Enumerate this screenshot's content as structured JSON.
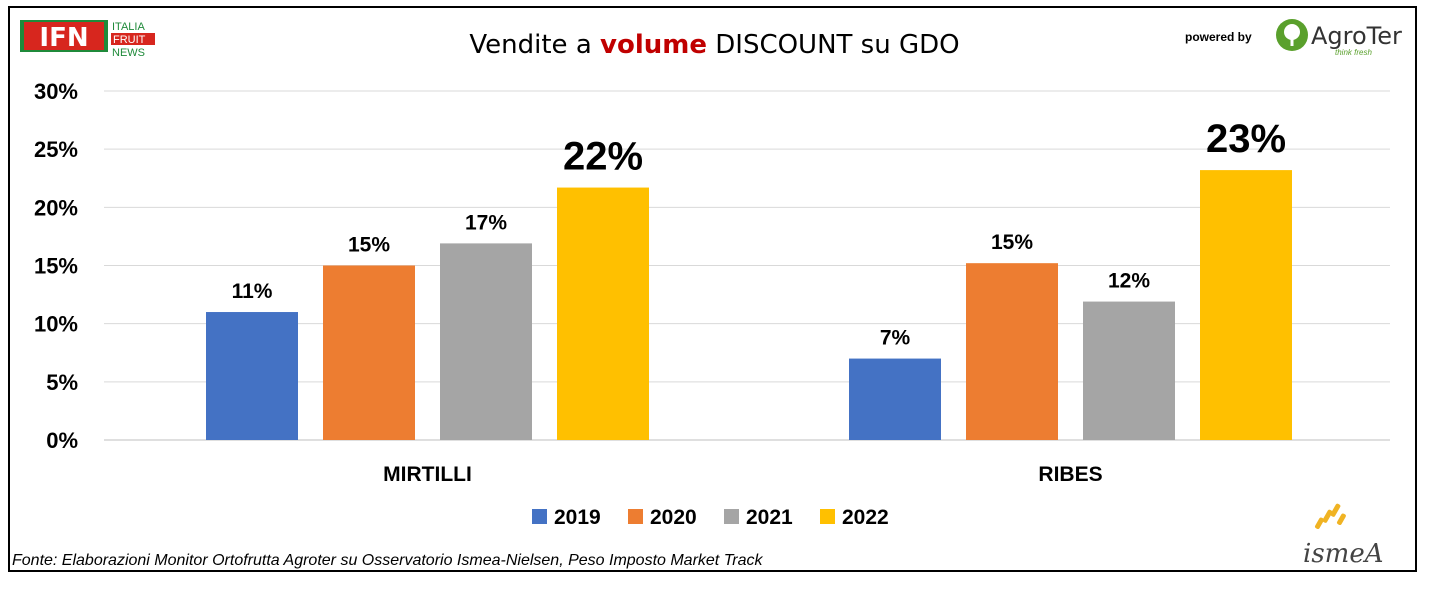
{
  "header": {
    "title_prefix": "Vendite a ",
    "title_accent": "volume",
    "title_suffix": " DISCOUNT su GDO",
    "ifn_logo_text": "IFN",
    "ifn_logo_lines": [
      "ITALIA",
      "FRUIT",
      "NEWS"
    ],
    "powered_by": "powered by",
    "agroter_brand": "AgroTer",
    "agroter_tagline": "think fresh"
  },
  "footer": {
    "source": "Fonte: Elaborazioni Monitor Ortofrutta Agroter su Osservatorio Ismea-Nielsen, Peso Imposto Market Track",
    "ismea_logo": "ismeA"
  },
  "colors": {
    "accent": "#c00000",
    "series_2019": "#4472c4",
    "series_2020": "#ed7d31",
    "series_2021": "#a5a5a5",
    "series_2022": "#ffc000"
  },
  "chart_data": {
    "type": "bar",
    "categories": [
      "MIRTILLI",
      "RIBES"
    ],
    "series": [
      {
        "name": "2019",
        "values": [
          11,
          7
        ],
        "labels": [
          "11%",
          "7%"
        ],
        "color": "#4472c4"
      },
      {
        "name": "2020",
        "values": [
          15,
          15.2
        ],
        "labels": [
          "15%",
          "15%"
        ],
        "color": "#ed7d31"
      },
      {
        "name": "2021",
        "values": [
          16.9,
          11.9
        ],
        "labels": [
          "17%",
          "12%"
        ],
        "color": "#a5a5a5"
      },
      {
        "name": "2022",
        "values": [
          21.7,
          23.2
        ],
        "labels": [
          "22%",
          "23%"
        ],
        "color": "#ffc000"
      }
    ],
    "yticks": [
      "0%",
      "5%",
      "10%",
      "15%",
      "20%",
      "25%",
      "30%"
    ],
    "ylim": [
      0,
      30
    ],
    "grid": true,
    "legend_position": "bottom"
  }
}
